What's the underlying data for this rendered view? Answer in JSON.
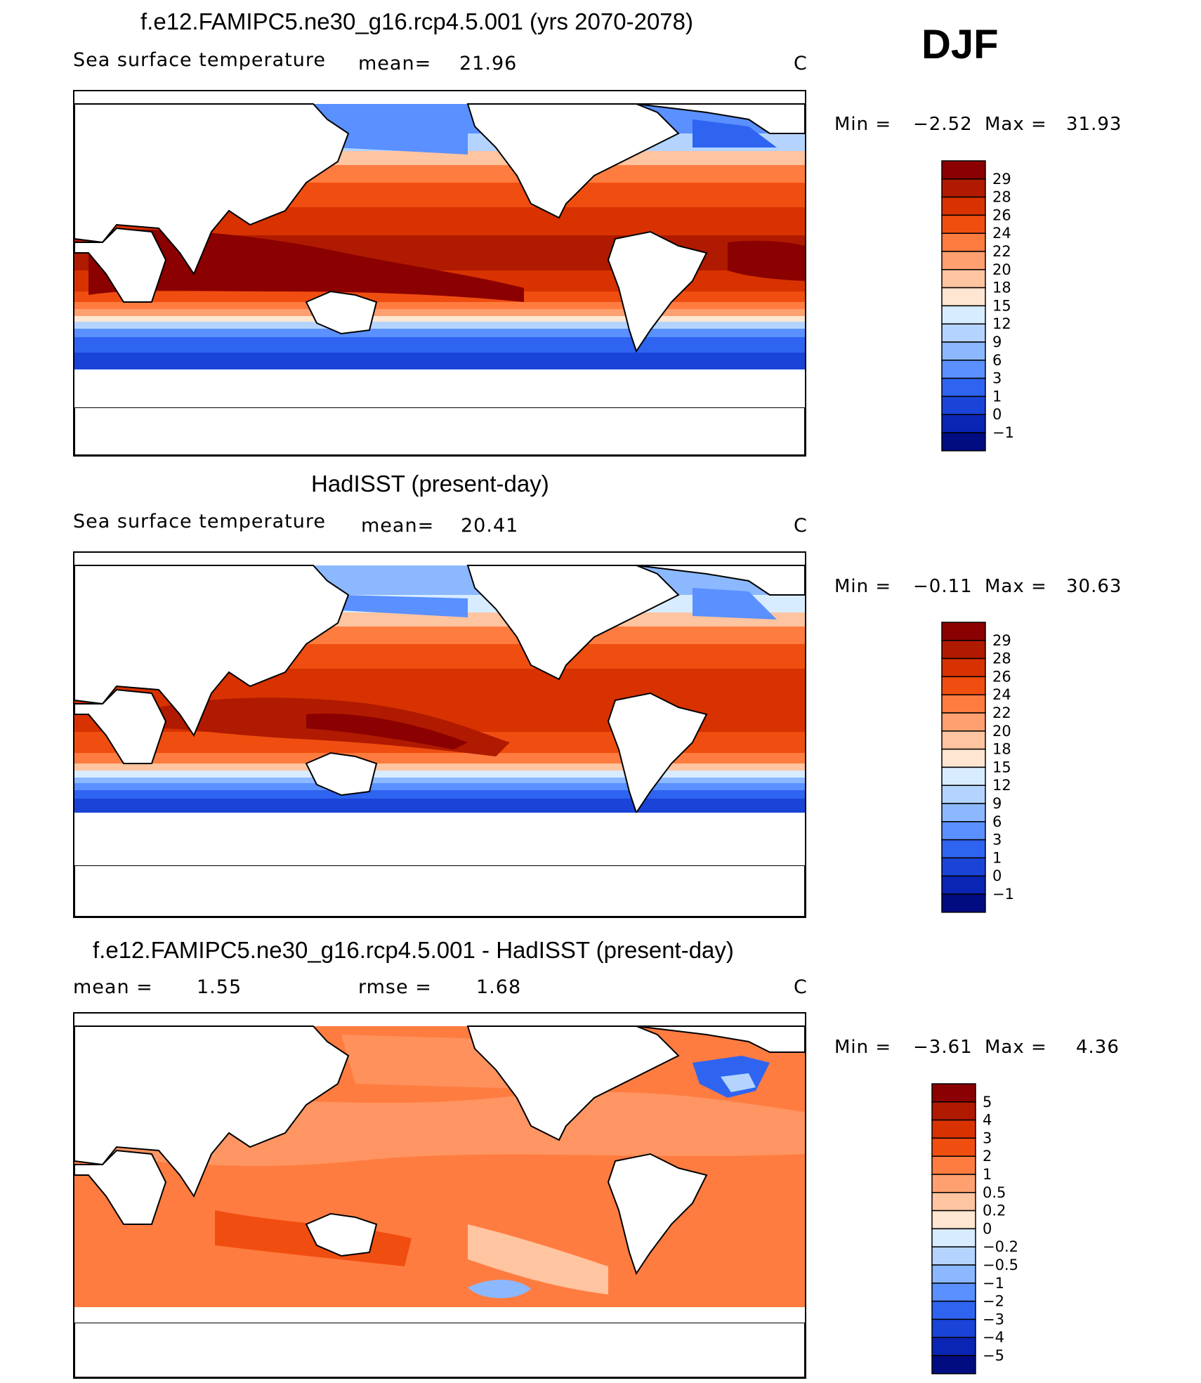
{
  "season": "DJF",
  "panels": [
    {
      "title": "f.e12.FAMIPC5.ne30_g16.rcp4.5.001 (yrs 2070-2078)",
      "left_label": "Sea surface temperature",
      "mean_label": "mean=",
      "mean_value": "21.96",
      "units": "C",
      "min_label": "Min =",
      "min_value": "−2.52",
      "max_label": "Max =",
      "max_value": "31.93",
      "colorbar": {
        "levels": [
          "29",
          "28",
          "26",
          "24",
          "22",
          "20",
          "18",
          "15",
          "12",
          "9",
          "6",
          "3",
          "1",
          "0",
          "−1"
        ],
        "colors": [
          "#8b0000",
          "#b01a00",
          "#d83200",
          "#f04e10",
          "#ff7c40",
          "#ffa070",
          "#ffc4a0",
          "#ffe6d2",
          "#d8ecff",
          "#b4d4ff",
          "#8cb8ff",
          "#5a90ff",
          "#2e64f0",
          "#1a44d8",
          "#0a24b4",
          "#000c80"
        ]
      }
    },
    {
      "title": "HadISST (present-day)",
      "left_label": "Sea surface temperature",
      "mean_label": "mean=",
      "mean_value": "20.41",
      "units": "C",
      "min_label": "Min =",
      "min_value": "−0.11",
      "max_label": "Max =",
      "max_value": "30.63",
      "colorbar": {
        "levels": [
          "29",
          "28",
          "26",
          "24",
          "22",
          "20",
          "18",
          "15",
          "12",
          "9",
          "6",
          "3",
          "1",
          "0",
          "−1"
        ],
        "colors": [
          "#8b0000",
          "#b01a00",
          "#d83200",
          "#f04e10",
          "#ff7c40",
          "#ffa070",
          "#ffc4a0",
          "#ffe6d2",
          "#d8ecff",
          "#b4d4ff",
          "#8cb8ff",
          "#5a90ff",
          "#2e64f0",
          "#1a44d8",
          "#0a24b4",
          "#000c80"
        ]
      }
    },
    {
      "title": "f.e12.FAMIPC5.ne30_g16.rcp4.5.001 - HadISST (present-day)",
      "left_label": "mean =",
      "left_value": "1.55",
      "mean_label": "rmse =",
      "mean_value": "1.68",
      "units": "C",
      "min_label": "Min =",
      "min_value": "−3.61",
      "max_label": "Max =",
      "max_value": "4.36",
      "colorbar": {
        "levels": [
          "5",
          "4",
          "3",
          "2",
          "1",
          "0.5",
          "0.2",
          "0",
          "−0.2",
          "−0.5",
          "−1",
          "−2",
          "−3",
          "−4",
          "−5"
        ],
        "colors": [
          "#8b0000",
          "#b01a00",
          "#d83200",
          "#f04e10",
          "#ff7c40",
          "#ffa070",
          "#ffc4a0",
          "#ffe6d2",
          "#d8ecff",
          "#b4d4ff",
          "#8cb8ff",
          "#5a90ff",
          "#2e64f0",
          "#1a44d8",
          "#0a24b4",
          "#000c80"
        ]
      }
    }
  ],
  "chart_data": [
    {
      "type": "heatmap",
      "title": "f.e12.FAMIPC5.ne30_g16.rcp4.5.001 (yrs 2070-2078)",
      "variable": "Sea surface temperature",
      "units": "C",
      "mean": 21.96,
      "min": -2.52,
      "max": 31.93,
      "contour_levels": [
        -1,
        0,
        1,
        3,
        6,
        9,
        12,
        15,
        18,
        20,
        22,
        24,
        26,
        28,
        29
      ],
      "projection": "global cylindrical equidistant, Pacific-centred"
    },
    {
      "type": "heatmap",
      "title": "HadISST (present-day)",
      "variable": "Sea surface temperature",
      "units": "C",
      "mean": 20.41,
      "min": -0.11,
      "max": 30.63,
      "contour_levels": [
        -1,
        0,
        1,
        3,
        6,
        9,
        12,
        15,
        18,
        20,
        22,
        24,
        26,
        28,
        29
      ],
      "projection": "global cylindrical equidistant, Pacific-centred"
    },
    {
      "type": "heatmap",
      "title": "f.e12.FAMIPC5.ne30_g16.rcp4.5.001 - HadISST (present-day)",
      "units": "C",
      "mean": 1.55,
      "rmse": 1.68,
      "min": -3.61,
      "max": 4.36,
      "contour_levels": [
        -5,
        -4,
        -3,
        -2,
        -1,
        -0.5,
        -0.2,
        0,
        0.2,
        0.5,
        1,
        2,
        3,
        4,
        5
      ],
      "projection": "global cylindrical equidistant, Pacific-centred"
    }
  ]
}
